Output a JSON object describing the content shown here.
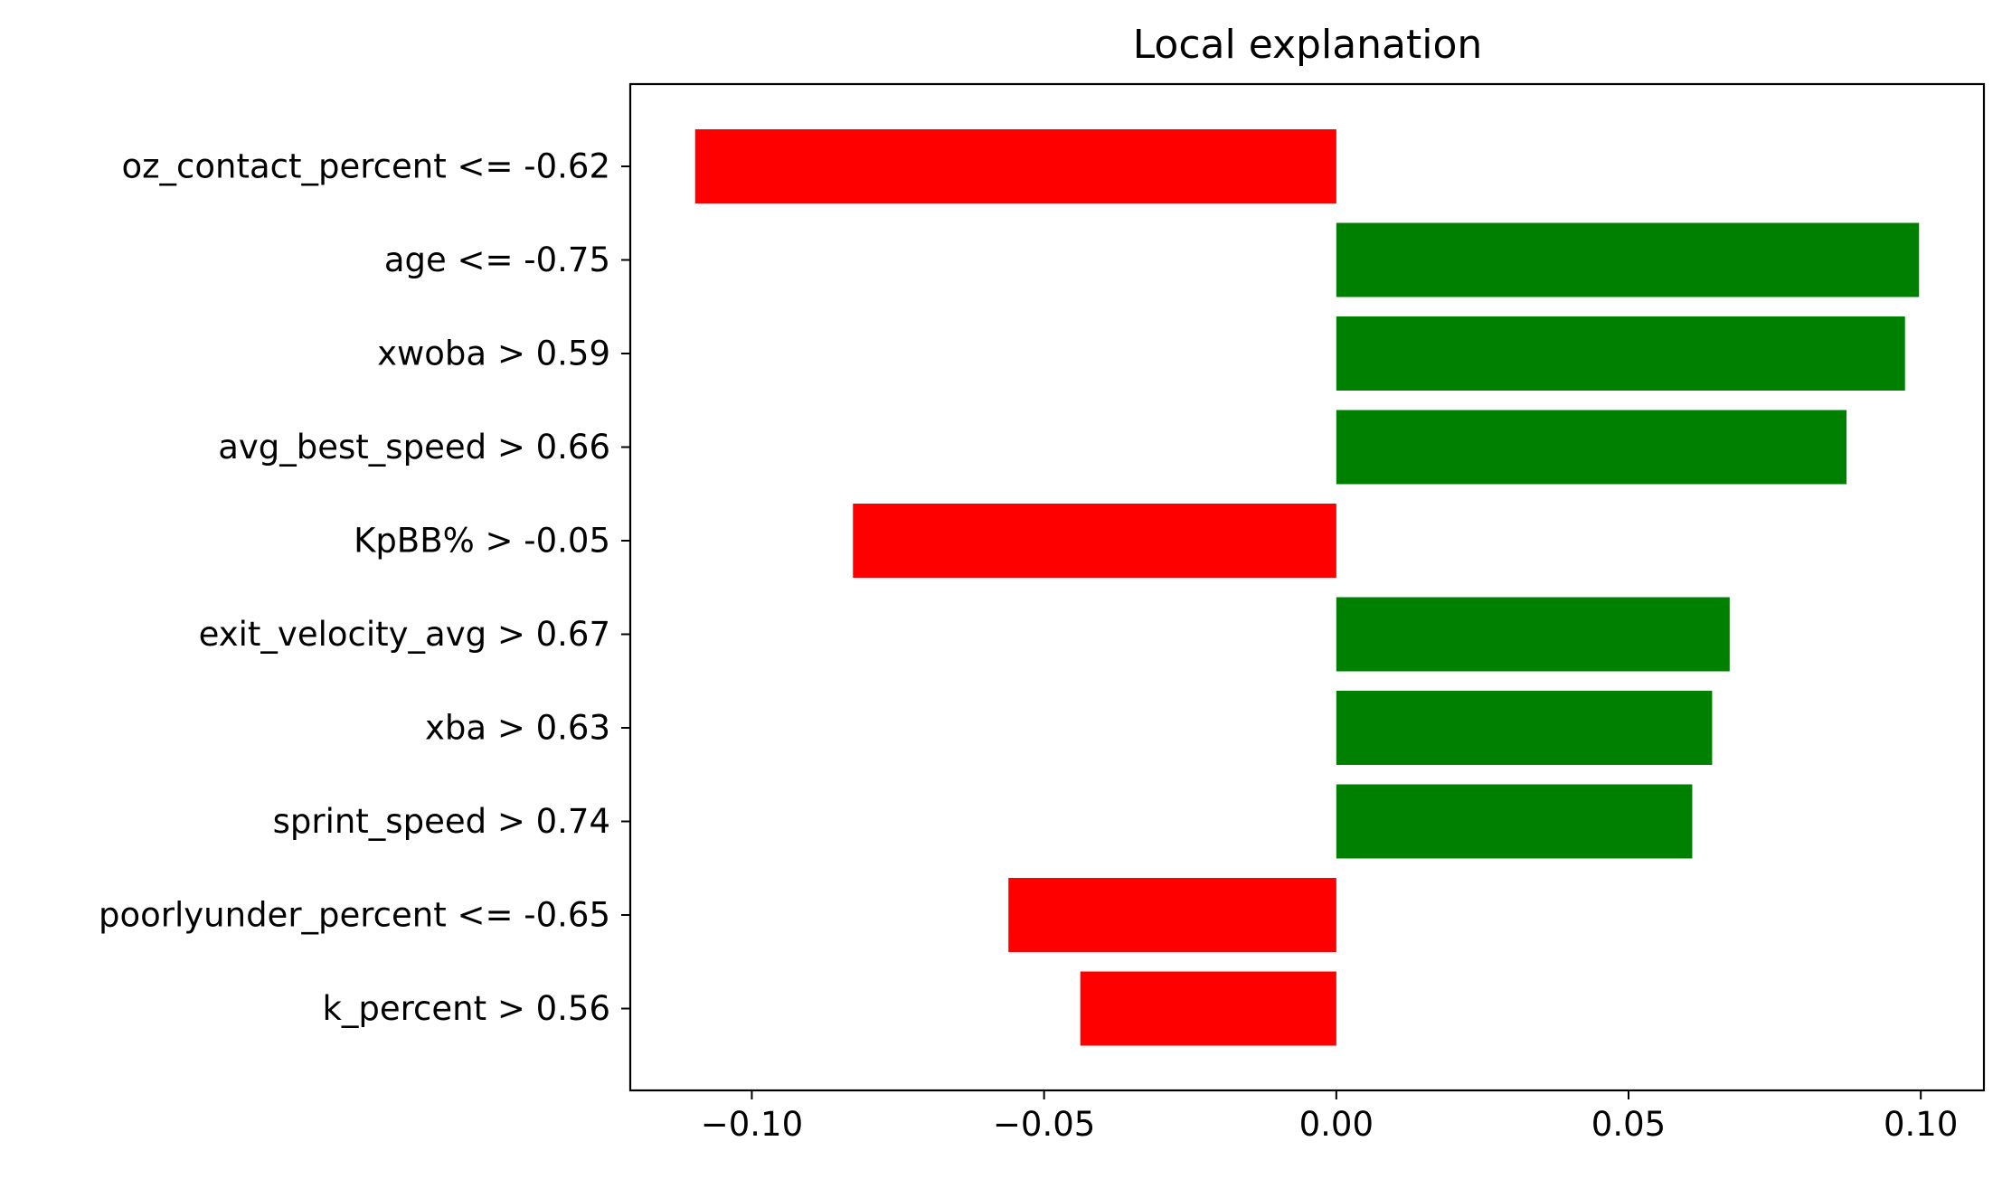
{
  "chart_data": {
    "type": "bar",
    "orientation": "horizontal",
    "title": "Local explanation",
    "xlabel": "",
    "ylabel": "",
    "categories": [
      "oz_contact_percent <= -0.62",
      "age <= -0.75",
      "xwoba > 0.59",
      "avg_best_speed > 0.66",
      "KpBB% > -0.05",
      "exit_velocity_avg > 0.67",
      "xba > 0.63",
      "sprint_speed > 0.74",
      "poorlyunder_percent <= -0.65",
      "k_percent > 0.56"
    ],
    "values": [
      -0.1097,
      0.0997,
      0.0973,
      0.0873,
      -0.0827,
      0.0673,
      0.0643,
      0.0609,
      -0.0561,
      -0.0438
    ],
    "xlim": [
      -0.1208,
      0.1108
    ],
    "xticks": [
      -0.1,
      -0.05,
      0.0,
      0.05,
      0.1
    ],
    "xtick_labels": [
      "−0.10",
      "−0.05",
      "0.00",
      "0.05",
      "0.10"
    ],
    "grid": false,
    "colors": {
      "positive": "#008000",
      "negative": "#ff0000",
      "axes": "#000000"
    }
  }
}
